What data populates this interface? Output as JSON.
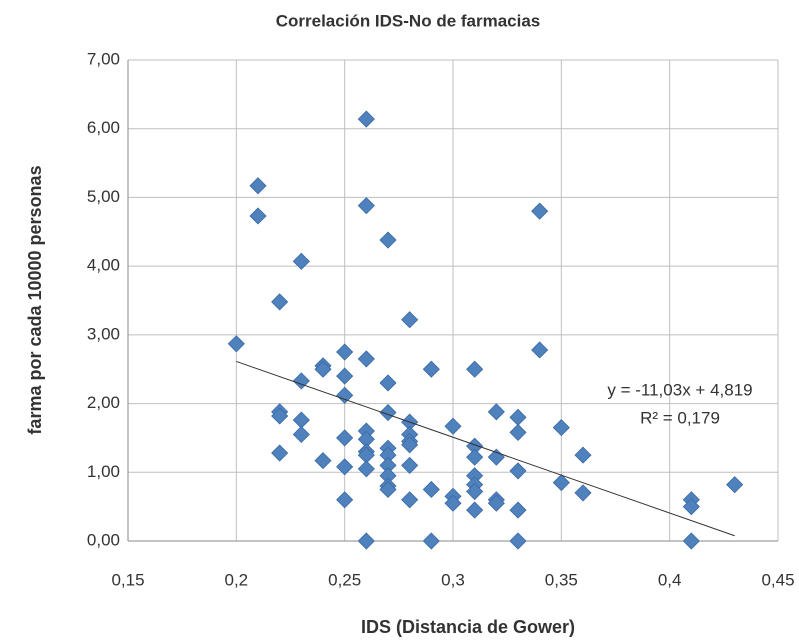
{
  "chart_data": {
    "type": "scatter",
    "title": "Correlación IDS-No de farmacias",
    "xlabel": "IDS (Distancia de Gower)",
    "ylabel": "farma por cada 10000 personas",
    "color": "#4f81bd",
    "grid": true,
    "xlim": [
      0.15,
      0.45
    ],
    "ylim": [
      0,
      7
    ],
    "xticks": [
      {
        "value": 0.15,
        "label": "0,15"
      },
      {
        "value": 0.2,
        "label": "0,2"
      },
      {
        "value": 0.25,
        "label": "0,25"
      },
      {
        "value": 0.3,
        "label": "0,3"
      },
      {
        "value": 0.35,
        "label": "0,35"
      },
      {
        "value": 0.4,
        "label": "0,4"
      },
      {
        "value": 0.45,
        "label": "0,45"
      }
    ],
    "yticks": [
      {
        "value": 0,
        "label": "0,00"
      },
      {
        "value": 1,
        "label": "1,00"
      },
      {
        "value": 2,
        "label": "2,00"
      },
      {
        "value": 3,
        "label": "3,00"
      },
      {
        "value": 4,
        "label": "4,00"
      },
      {
        "value": 5,
        "label": "5,00"
      },
      {
        "value": 6,
        "label": "6,00"
      },
      {
        "value": 7,
        "label": "7,00"
      }
    ],
    "x": [
      0.2,
      0.21,
      0.21,
      0.22,
      0.22,
      0.22,
      0.22,
      0.23,
      0.23,
      0.23,
      0.23,
      0.24,
      0.24,
      0.24,
      0.25,
      0.25,
      0.25,
      0.25,
      0.25,
      0.25,
      0.26,
      0.26,
      0.26,
      0.26,
      0.26,
      0.26,
      0.26,
      0.26,
      0.26,
      0.27,
      0.27,
      0.27,
      0.27,
      0.27,
      0.27,
      0.27,
      0.27,
      0.27,
      0.28,
      0.28,
      0.28,
      0.28,
      0.28,
      0.28,
      0.28,
      0.29,
      0.29,
      0.29,
      0.3,
      0.3,
      0.3,
      0.31,
      0.31,
      0.31,
      0.31,
      0.31,
      0.31,
      0.31,
      0.32,
      0.32,
      0.32,
      0.32,
      0.33,
      0.33,
      0.33,
      0.33,
      0.33,
      0.34,
      0.34,
      0.35,
      0.35,
      0.36,
      0.36,
      0.41,
      0.41,
      0.41,
      0.43
    ],
    "values": [
      2.87,
      5.17,
      4.73,
      3.48,
      1.88,
      1.82,
      1.28,
      4.07,
      2.33,
      1.76,
      1.55,
      2.55,
      2.5,
      1.17,
      2.75,
      2.4,
      2.12,
      1.5,
      1.08,
      0.6,
      6.14,
      4.88,
      2.65,
      1.6,
      1.48,
      1.3,
      1.25,
      1.05,
      0.0,
      4.38,
      2.3,
      1.87,
      1.35,
      1.25,
      1.1,
      0.95,
      0.8,
      0.75,
      3.22,
      1.73,
      1.55,
      1.45,
      1.4,
      1.1,
      0.6,
      2.5,
      0.75,
      0.0,
      1.67,
      0.65,
      0.55,
      2.5,
      1.38,
      1.22,
      0.95,
      0.82,
      0.72,
      0.45,
      1.88,
      1.22,
      0.6,
      0.55,
      1.8,
      1.58,
      1.02,
      0.45,
      0.0,
      4.8,
      2.78,
      1.65,
      0.85,
      1.25,
      0.7,
      0.6,
      0.5,
      0.0,
      0.82
    ],
    "trendline": {
      "slope": -11.03,
      "intercept": 4.819,
      "x": [
        0.2,
        0.43
      ],
      "equation": "y = -11,03x + 4,819",
      "r2": "R² = 0,179"
    }
  }
}
